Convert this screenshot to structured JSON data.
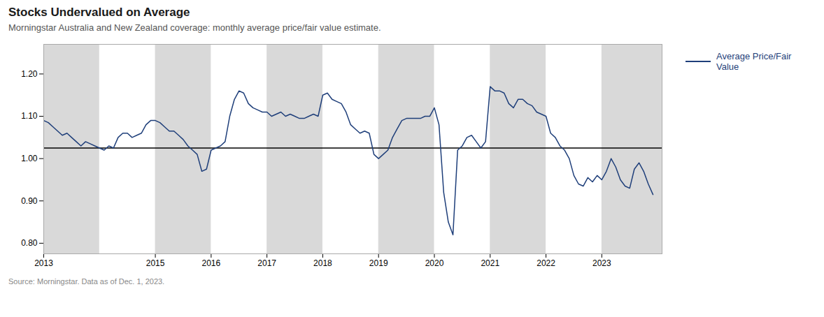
{
  "chart_data": {
    "type": "line",
    "title": "Stocks Undervalued on Average",
    "subtitle": "Morningstar Australia and New Zealand coverage: monthly average price/fair value estimate.",
    "source": "Source: Morningstar. Data as of Dec. 1, 2023.",
    "x": [
      2013.0,
      2013.083,
      2013.167,
      2013.25,
      2013.333,
      2013.417,
      2013.5,
      2013.583,
      2013.667,
      2013.75,
      2013.833,
      2013.917,
      2014.0,
      2014.083,
      2014.167,
      2014.25,
      2014.333,
      2014.417,
      2014.5,
      2014.583,
      2014.667,
      2014.75,
      2014.833,
      2014.917,
      2015.0,
      2015.083,
      2015.167,
      2015.25,
      2015.333,
      2015.417,
      2015.5,
      2015.583,
      2015.667,
      2015.75,
      2015.833,
      2015.917,
      2016.0,
      2016.083,
      2016.167,
      2016.25,
      2016.333,
      2016.417,
      2016.5,
      2016.583,
      2016.667,
      2016.75,
      2016.833,
      2016.917,
      2017.0,
      2017.083,
      2017.167,
      2017.25,
      2017.333,
      2017.417,
      2017.5,
      2017.583,
      2017.667,
      2017.75,
      2017.833,
      2017.917,
      2018.0,
      2018.083,
      2018.167,
      2018.25,
      2018.333,
      2018.417,
      2018.5,
      2018.583,
      2018.667,
      2018.75,
      2018.833,
      2018.917,
      2019.0,
      2019.083,
      2019.167,
      2019.25,
      2019.333,
      2019.417,
      2019.5,
      2019.583,
      2019.667,
      2019.75,
      2019.833,
      2019.917,
      2020.0,
      2020.083,
      2020.167,
      2020.25,
      2020.333,
      2020.417,
      2020.5,
      2020.583,
      2020.667,
      2020.75,
      2020.833,
      2020.917,
      2021.0,
      2021.083,
      2021.167,
      2021.25,
      2021.333,
      2021.417,
      2021.5,
      2021.583,
      2021.667,
      2021.75,
      2021.833,
      2021.917,
      2022.0,
      2022.083,
      2022.167,
      2022.25,
      2022.333,
      2022.417,
      2022.5,
      2022.583,
      2022.667,
      2022.75,
      2022.833,
      2022.917,
      2023.0,
      2023.083,
      2023.167,
      2023.25,
      2023.333,
      2023.417,
      2023.5,
      2023.583,
      2023.667,
      2023.75,
      2023.833,
      2023.917
    ],
    "series": [
      {
        "name": "Average Price/Fair Value",
        "color": "#1f3f7a",
        "values": [
          1.09,
          1.085,
          1.075,
          1.065,
          1.055,
          1.06,
          1.05,
          1.04,
          1.03,
          1.04,
          1.035,
          1.03,
          1.025,
          1.02,
          1.03,
          1.025,
          1.05,
          1.06,
          1.06,
          1.05,
          1.055,
          1.06,
          1.08,
          1.09,
          1.09,
          1.085,
          1.075,
          1.065,
          1.065,
          1.055,
          1.045,
          1.03,
          1.02,
          1.01,
          0.97,
          0.975,
          1.02,
          1.025,
          1.03,
          1.04,
          1.1,
          1.14,
          1.16,
          1.155,
          1.13,
          1.12,
          1.115,
          1.11,
          1.11,
          1.1,
          1.105,
          1.11,
          1.1,
          1.105,
          1.1,
          1.095,
          1.095,
          1.1,
          1.105,
          1.1,
          1.15,
          1.155,
          1.14,
          1.135,
          1.13,
          1.11,
          1.08,
          1.07,
          1.06,
          1.065,
          1.06,
          1.01,
          1.0,
          1.01,
          1.02,
          1.05,
          1.07,
          1.09,
          1.095,
          1.095,
          1.095,
          1.095,
          1.1,
          1.1,
          1.12,
          1.08,
          0.92,
          0.85,
          0.82,
          1.02,
          1.03,
          1.05,
          1.055,
          1.04,
          1.025,
          1.04,
          1.17,
          1.16,
          1.16,
          1.155,
          1.13,
          1.12,
          1.14,
          1.14,
          1.13,
          1.125,
          1.11,
          1.105,
          1.1,
          1.06,
          1.05,
          1.03,
          1.02,
          1.0,
          0.96,
          0.94,
          0.935,
          0.955,
          0.945,
          0.96,
          0.95,
          0.97,
          1.0,
          0.98,
          0.95,
          0.935,
          0.93,
          0.975,
          0.99,
          0.97,
          0.94,
          0.915
        ]
      }
    ],
    "reference_line": {
      "value": 1.025,
      "color": "#000000"
    },
    "shaded_regions": [
      [
        2013.0,
        2014.0
      ],
      [
        2015.0,
        2016.0
      ],
      [
        2017.0,
        2018.0
      ],
      [
        2019.0,
        2020.0
      ],
      [
        2021.0,
        2022.0
      ],
      [
        2023.0,
        2024.08
      ]
    ],
    "shade_color": "#d9d9d9",
    "xlim": [
      2013.0,
      2024.08
    ],
    "xticks": [
      2013,
      2015,
      2016,
      2017,
      2018,
      2019,
      2020,
      2021,
      2022,
      2023
    ],
    "ylim": [
      0.775,
      1.27
    ],
    "yticks": [
      {
        "value": 0.8,
        "label": "0.80"
      },
      {
        "value": 0.9,
        "label": "0.90"
      },
      {
        "value": 1.0,
        "label": "1.00"
      },
      {
        "value": 1.1,
        "label": "1.10"
      },
      {
        "value": 1.2,
        "label": "1.20"
      }
    ],
    "grid": false,
    "legend": "right"
  }
}
